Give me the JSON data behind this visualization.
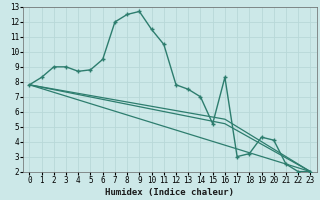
{
  "xlabel": "Humidex (Indice chaleur)",
  "bg_color": "#cce8e8",
  "grid_color": "#b8d8d8",
  "line_color": "#2d7d6e",
  "xlim": [
    -0.5,
    23.5
  ],
  "ylim": [
    2,
    13
  ],
  "xticks": [
    0,
    1,
    2,
    3,
    4,
    5,
    6,
    7,
    8,
    9,
    10,
    11,
    12,
    13,
    14,
    15,
    16,
    17,
    18,
    19,
    20,
    21,
    22,
    23
  ],
  "yticks": [
    2,
    3,
    4,
    5,
    6,
    7,
    8,
    9,
    10,
    11,
    12,
    13
  ],
  "line1_x": [
    0,
    1,
    2,
    3,
    4,
    5,
    6,
    7,
    8,
    9,
    10,
    11,
    12,
    13,
    14,
    15,
    16,
    17,
    18,
    19,
    20,
    21,
    22,
    23
  ],
  "line1_y": [
    7.8,
    8.3,
    9.0,
    9.0,
    8.7,
    8.8,
    9.5,
    12.0,
    12.5,
    12.7,
    11.5,
    10.5,
    7.8,
    7.5,
    7.0,
    5.2,
    8.3,
    3.0,
    3.2,
    4.3,
    4.1,
    2.5,
    2.0,
    2.0
  ],
  "line2_x": [
    0,
    23
  ],
  "line2_y": [
    7.8,
    2.0
  ],
  "line3_x": [
    0,
    16,
    23
  ],
  "line3_y": [
    7.8,
    5.2,
    2.0
  ],
  "line4_x": [
    0,
    16,
    23
  ],
  "line4_y": [
    7.8,
    5.5,
    2.0
  ]
}
